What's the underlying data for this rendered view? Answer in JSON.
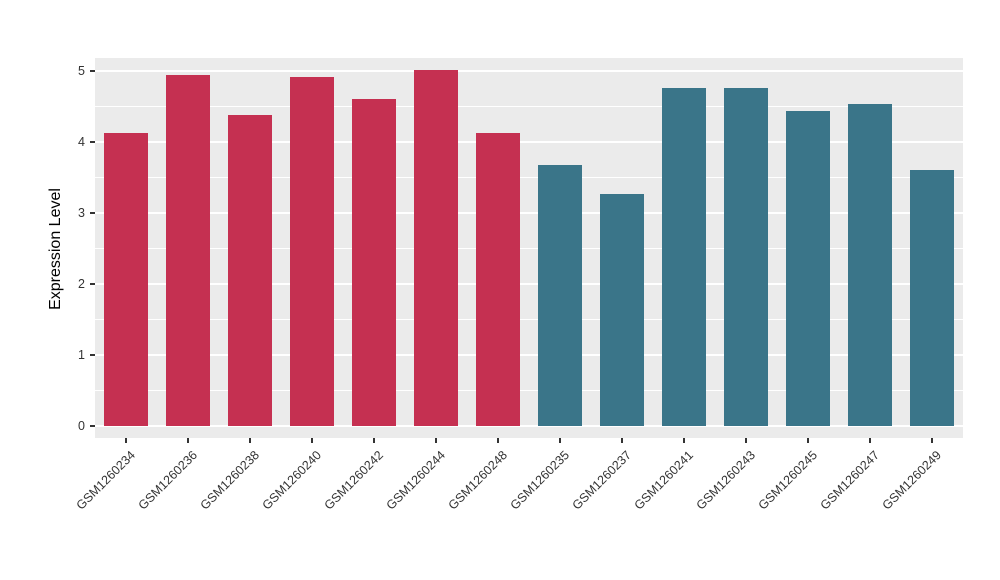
{
  "chart_data": {
    "type": "bar",
    "title": "",
    "xlabel": "",
    "ylabel": "Expression Level",
    "ylim": [
      0,
      5.2
    ],
    "yticks": [
      0,
      1,
      2,
      3,
      4,
      5
    ],
    "grid": "on",
    "legend": "none",
    "panel_bg": "#EBEBEB",
    "grid_color": "#FFFFFF",
    "palette": {
      "group1": "#C53051",
      "group2": "#3A7589"
    },
    "categories": [
      "GSM1260234",
      "GSM1260236",
      "GSM1260238",
      "GSM1260240",
      "GSM1260242",
      "GSM1260244",
      "GSM1260248",
      "GSM1260235",
      "GSM1260237",
      "GSM1260241",
      "GSM1260243",
      "GSM1260245",
      "GSM1260247",
      "GSM1260249"
    ],
    "values": [
      4.13,
      4.95,
      4.38,
      4.91,
      4.6,
      5.02,
      4.13,
      3.68,
      3.27,
      4.76,
      4.76,
      4.43,
      4.53,
      3.6
    ],
    "groups": [
      "group1",
      "group1",
      "group1",
      "group1",
      "group1",
      "group1",
      "group1",
      "group2",
      "group2",
      "group2",
      "group2",
      "group2",
      "group2",
      "group2"
    ]
  }
}
